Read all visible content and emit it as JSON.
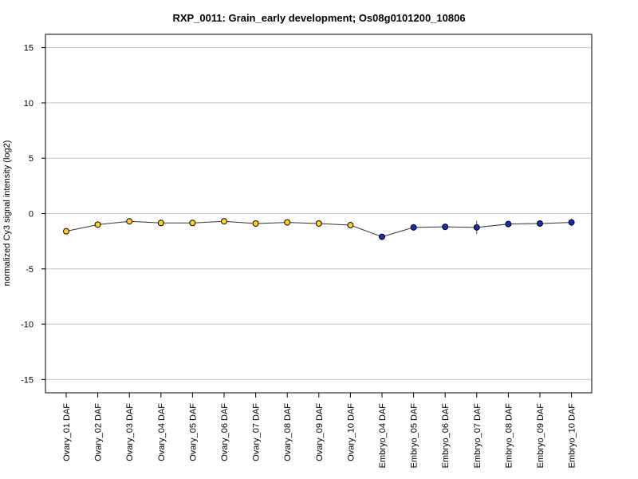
{
  "chart_data": {
    "type": "line",
    "title": "RXP_0011: Grain_early development; Os08g0101200_10806",
    "ylabel": "normalized Cy3 signal intensity (log2)",
    "xlabel": "",
    "ylim": [
      -16.2,
      16.2
    ],
    "yticks": [
      -15,
      -10,
      -5,
      0,
      5,
      10,
      15
    ],
    "grid": true,
    "categories": [
      "Ovary_01 DAF",
      "Ovary_02 DAF",
      "Ovary_03 DAF",
      "Ovary_04 DAF",
      "Ovary_05 DAF",
      "Ovary_06 DAF",
      "Ovary_07 DAF",
      "Ovary_08 DAF",
      "Ovary_09 DAF",
      "Ovary_10 DAF",
      "Embryo_04 DAF",
      "Embryo_05 DAF",
      "Embryo_06 DAF",
      "Embryo_07 DAF",
      "Embryo_08 DAF",
      "Embryo_09 DAF",
      "Embryo_10 DAF"
    ],
    "values": [
      -1.6,
      -1.0,
      -0.7,
      -0.85,
      -0.85,
      -0.7,
      -0.9,
      -0.8,
      -0.9,
      -1.05,
      -2.1,
      -1.25,
      -1.2,
      -1.25,
      -0.95,
      -0.9,
      -0.8
    ],
    "errors": [
      0.12,
      0.1,
      0.08,
      0.08,
      0.08,
      0.08,
      0.08,
      0.08,
      0.08,
      0.12,
      0.15,
      0.18,
      0.3,
      0.6,
      0.15,
      0.12,
      0.35
    ],
    "point_colors": [
      "#ffd21f",
      "#ffd21f",
      "#ffd21f",
      "#ffd21f",
      "#ffd21f",
      "#ffd21f",
      "#ffd21f",
      "#ffd21f",
      "#ffd21f",
      "#ffd21f",
      "#1b2bb8",
      "#1b2bb8",
      "#1b2bb8",
      "#1b2bb8",
      "#1b2bb8",
      "#1b2bb8",
      "#1b2bb8"
    ],
    "line_color": "#333333",
    "grid_color": "#c8c8c8"
  }
}
